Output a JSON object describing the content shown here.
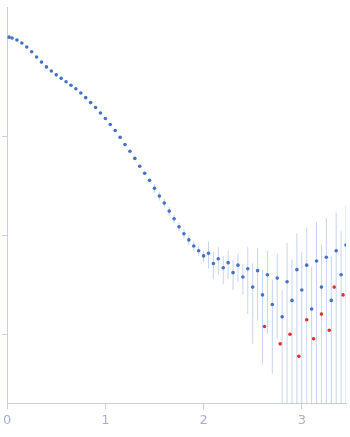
{
  "chart_data": {
    "type": "scatter",
    "log": "y",
    "grid": false,
    "tick_labels": "x",
    "xlim": [
      0,
      3.45
    ],
    "xticks": [
      0,
      1,
      2,
      3
    ],
    "ylim": [
      0.002,
      20
    ],
    "yticks": [
      0.01,
      0.1,
      1
    ],
    "series": [
      {
        "color": "#4472c4",
        "marker": "circle",
        "x": [
          0.02,
          0.05,
          0.1,
          0.15,
          0.2,
          0.25,
          0.3,
          0.35,
          0.4,
          0.45,
          0.5,
          0.55,
          0.6,
          0.65,
          0.7,
          0.75,
          0.8,
          0.85,
          0.9,
          0.95,
          1.0,
          1.05,
          1.1,
          1.15,
          1.2,
          1.25,
          1.3,
          1.35,
          1.4,
          1.45,
          1.5,
          1.55,
          1.6,
          1.65,
          1.7,
          1.75,
          1.8,
          1.85,
          1.9,
          1.95,
          2.0,
          2.05,
          2.1,
          2.15,
          2.2,
          2.25,
          2.3,
          2.35,
          2.4,
          2.45,
          2.5,
          2.55,
          2.6,
          2.65,
          2.7,
          2.75,
          2.8,
          2.85,
          2.9,
          2.95,
          3.0,
          3.05,
          3.1,
          3.15,
          3.2,
          3.25,
          3.3,
          3.35,
          3.4,
          3.45
        ],
        "values": [
          10.1,
          9.9,
          9.44,
          8.8,
          8.03,
          7.2,
          6.37,
          5.65,
          5.05,
          4.6,
          4.2,
          3.87,
          3.57,
          3.3,
          3.04,
          2.75,
          2.47,
          2.2,
          1.96,
          1.73,
          1.52,
          1.32,
          1.15,
          0.98,
          0.83,
          0.71,
          0.6,
          0.5,
          0.425,
          0.36,
          0.3,
          0.25,
          0.212,
          0.176,
          0.147,
          0.122,
          0.104,
          0.09,
          0.078,
          0.07,
          0.062,
          0.066,
          0.052,
          0.058,
          0.047,
          0.053,
          0.042,
          0.05,
          0.038,
          0.046,
          0.03,
          0.044,
          0.025,
          0.04,
          0.02,
          0.037,
          0.015,
          0.034,
          0.022,
          0.045,
          0.028,
          0.05,
          0.018,
          0.055,
          0.03,
          0.06,
          0.022,
          0.07,
          0.04,
          0.08
        ],
        "errors": [
          0.2,
          0.2,
          0.19,
          0.18,
          0.16,
          0.14,
          0.13,
          0.11,
          0.1,
          0.09,
          0.08,
          0.08,
          0.07,
          0.07,
          0.06,
          0.06,
          0.05,
          0.04,
          0.04,
          0.03,
          0.03,
          0.03,
          0.02,
          0.02,
          0.02,
          0.015,
          0.012,
          0.01,
          0.009,
          0.008,
          0.03,
          0.025,
          0.022,
          0.018,
          0.015,
          0.013,
          0.011,
          0.01,
          0.009,
          0.008,
          0.008,
          0.02,
          0.016,
          0.018,
          0.015,
          0.017,
          0.014,
          0.016,
          0.013,
          0.03,
          0.022,
          0.03,
          0.02,
          0.03,
          0.016,
          0.028,
          0.013,
          0.05,
          0.035,
          0.06,
          0.04,
          0.07,
          0.03,
          0.08,
          0.05,
          0.09,
          0.04,
          0.1,
          0.07,
          0.12
        ]
      },
      {
        "color": "#e0312f",
        "marker": "circle",
        "x": [
          2.62,
          2.78,
          2.88,
          2.97,
          3.05,
          3.12,
          3.2,
          3.28,
          3.33,
          3.42
        ],
        "values": [
          0.012,
          0.008,
          0.01,
          0.006,
          0.014,
          0.009,
          0.016,
          0.011,
          0.03,
          0.025
        ]
      }
    ]
  }
}
